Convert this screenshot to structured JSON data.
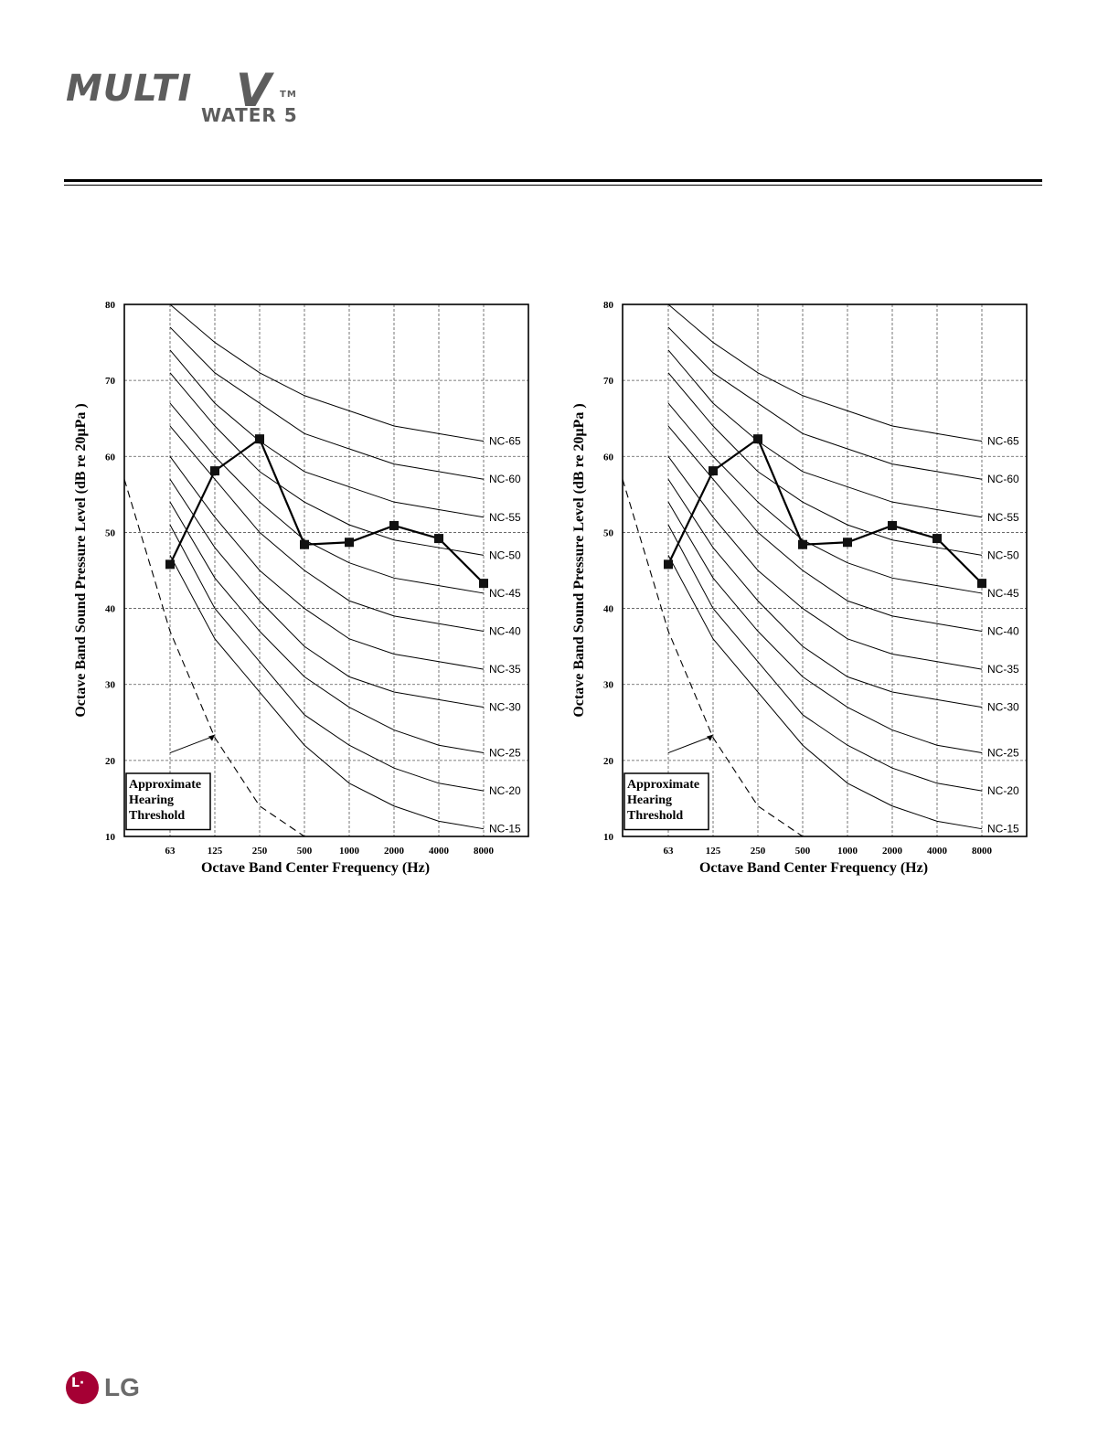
{
  "brand": {
    "main": "MULTI",
    "v": "V",
    "tm": "TM",
    "sub": "WATER 5"
  },
  "footer": {
    "logo_text": "LG"
  },
  "chart_data": [
    {
      "type": "line",
      "title": "",
      "xlabel": "Octave Band Center Frequency (Hz)",
      "ylabel": "Octave Band Sound Pressure Level (dB re 20μPa )",
      "categories": [
        "63",
        "125",
        "250",
        "500",
        "1000",
        "2000",
        "4000",
        "8000"
      ],
      "ylim": [
        10,
        80
      ],
      "yticks": [
        10,
        20,
        30,
        40,
        50,
        60,
        70,
        80
      ],
      "grid": true,
      "series": [
        {
          "values": [
            45.8,
            58.1,
            62.3,
            48.4,
            48.7,
            50.9,
            49.2,
            43.3
          ]
        }
      ],
      "nc_curves": [
        {
          "name": "NC-65",
          "values": [
            80,
            75,
            71,
            68,
            66,
            64,
            63,
            62
          ]
        },
        {
          "name": "NC-60",
          "values": [
            77,
            71,
            67,
            63,
            61,
            59,
            58,
            57
          ]
        },
        {
          "name": "NC-55",
          "values": [
            74,
            67,
            62,
            58,
            56,
            54,
            53,
            52
          ]
        },
        {
          "name": "NC-50",
          "values": [
            71,
            64,
            58,
            54,
            51,
            49,
            48,
            47
          ]
        },
        {
          "name": "NC-45",
          "values": [
            67,
            60,
            54,
            49,
            46,
            44,
            43,
            42
          ]
        },
        {
          "name": "NC-40",
          "values": [
            64,
            57,
            50,
            45,
            41,
            39,
            38,
            37
          ]
        },
        {
          "name": "NC-35",
          "values": [
            60,
            52,
            45,
            40,
            36,
            34,
            33,
            32
          ]
        },
        {
          "name": "NC-30",
          "values": [
            57,
            48,
            41,
            35,
            31,
            29,
            28,
            27
          ]
        },
        {
          "name": "NC-25",
          "values": [
            54,
            44,
            37,
            31,
            27,
            24,
            22,
            21
          ]
        },
        {
          "name": "NC-20",
          "values": [
            51,
            40,
            33,
            26,
            22,
            19,
            17,
            16
          ]
        },
        {
          "name": "NC-15",
          "values": [
            47,
            36,
            29,
            22,
            17,
            14,
            12,
            11
          ]
        }
      ],
      "hearing_threshold": {
        "label_lines": [
          "Approximate",
          "Hearing",
          "Threshold"
        ],
        "points": [
          [
            0,
            57
          ],
          [
            1,
            37
          ],
          [
            2,
            23
          ],
          [
            3,
            14
          ],
          [
            4,
            10
          ]
        ]
      }
    },
    {
      "type": "line",
      "title": "",
      "xlabel": "Octave Band Center Frequency (Hz)",
      "ylabel": "Octave Band Sound Pressure Level (dB re 20μPa )",
      "categories": [
        "63",
        "125",
        "250",
        "500",
        "1000",
        "2000",
        "4000",
        "8000"
      ],
      "ylim": [
        10,
        80
      ],
      "yticks": [
        10,
        20,
        30,
        40,
        50,
        60,
        70,
        80
      ],
      "grid": true,
      "series": [
        {
          "values": [
            45.8,
            58.1,
            62.3,
            48.4,
            48.7,
            50.9,
            49.2,
            43.3
          ]
        }
      ],
      "nc_curves": [
        {
          "name": "NC-65",
          "values": [
            80,
            75,
            71,
            68,
            66,
            64,
            63,
            62
          ]
        },
        {
          "name": "NC-60",
          "values": [
            77,
            71,
            67,
            63,
            61,
            59,
            58,
            57
          ]
        },
        {
          "name": "NC-55",
          "values": [
            74,
            67,
            62,
            58,
            56,
            54,
            53,
            52
          ]
        },
        {
          "name": "NC-50",
          "values": [
            71,
            64,
            58,
            54,
            51,
            49,
            48,
            47
          ]
        },
        {
          "name": "NC-45",
          "values": [
            67,
            60,
            54,
            49,
            46,
            44,
            43,
            42
          ]
        },
        {
          "name": "NC-40",
          "values": [
            64,
            57,
            50,
            45,
            41,
            39,
            38,
            37
          ]
        },
        {
          "name": "NC-35",
          "values": [
            60,
            52,
            45,
            40,
            36,
            34,
            33,
            32
          ]
        },
        {
          "name": "NC-30",
          "values": [
            57,
            48,
            41,
            35,
            31,
            29,
            28,
            27
          ]
        },
        {
          "name": "NC-25",
          "values": [
            54,
            44,
            37,
            31,
            27,
            24,
            22,
            21
          ]
        },
        {
          "name": "NC-20",
          "values": [
            51,
            40,
            33,
            26,
            22,
            19,
            17,
            16
          ]
        },
        {
          "name": "NC-15",
          "values": [
            47,
            36,
            29,
            22,
            17,
            14,
            12,
            11
          ]
        }
      ],
      "hearing_threshold": {
        "label_lines": [
          "Approximate",
          "Hearing",
          "Threshold"
        ],
        "points": [
          [
            0,
            57
          ],
          [
            1,
            37
          ],
          [
            2,
            23
          ],
          [
            3,
            14
          ],
          [
            4,
            10
          ]
        ]
      }
    }
  ]
}
